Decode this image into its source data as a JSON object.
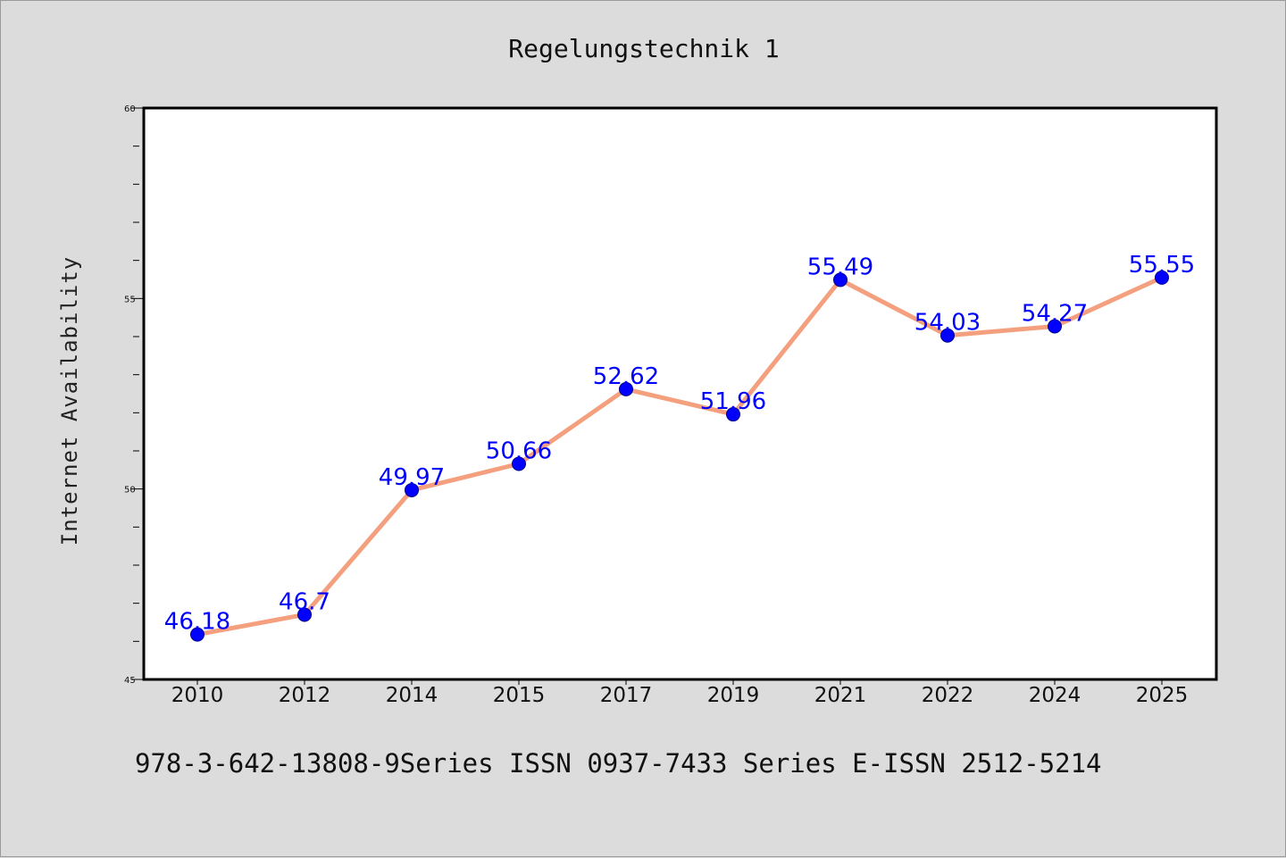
{
  "chart_data": {
    "type": "line",
    "title": "Regelungstechnik 1",
    "xlabel": "",
    "ylabel": "Internet Availability",
    "categories": [
      "2010",
      "2012",
      "2014",
      "2015",
      "2017",
      "2019",
      "2021",
      "2022",
      "2024",
      "2025"
    ],
    "series": [
      {
        "values": [
          46.18,
          46.7,
          49.97,
          50.66,
          52.62,
          51.96,
          55.49,
          54.03,
          54.27,
          55.55
        ],
        "labels": [
          "46.18",
          "46.7",
          "49.97",
          "50.66",
          "52.62",
          "51.96",
          "55.49",
          "54.03",
          "54.27",
          "55.55"
        ],
        "line_color": "#f4a07f",
        "marker_color": "#0000ff",
        "label_color": "#0000ff"
      }
    ],
    "ylim": [
      45,
      60
    ],
    "yticks": [
      "45",
      "50",
      "55",
      "60"
    ],
    "grid": false,
    "legend": "none"
  },
  "footer": {
    "text": "978-3-642-13808-9Series ISSN 0937-7433 Series E-ISSN 2512-5214"
  },
  "colors": {
    "background": "#dcdcdc",
    "plot_background": "#ffffff",
    "axis": "#000000"
  }
}
